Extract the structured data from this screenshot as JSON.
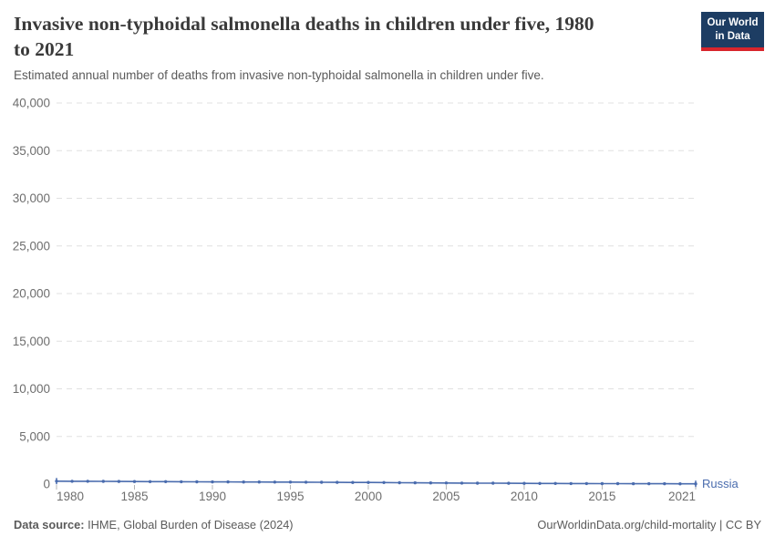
{
  "page": {
    "title_line1": "Invasive non-typhoidal salmonella deaths in children under five, 1980",
    "title_line2": "to 2021",
    "subtitle": "Estimated annual number of deaths from invasive non-typhoidal salmonella in children under five.",
    "logo": {
      "line1": "Our World",
      "line2": "in Data"
    },
    "footer": {
      "source_label": "Data source:",
      "source_text": "IHME, Global Burden of Disease (2024)",
      "license_text": "OurWorldinData.org/child-mortality | CC BY"
    }
  },
  "colors": {
    "series_blue": "#4a6cae",
    "logo_navy": "#1d3d63",
    "logo_red": "#d8252c",
    "gridline": "#e0e0e0",
    "axis_tick_text": "#6e6e6e",
    "tick_mark": "#b5b5b5",
    "title_text": "#3a3a3a",
    "subtitle_text": "#5a5a5a",
    "footer_text": "#5b5b5b"
  },
  "chart_data": {
    "type": "line",
    "title": "Invasive non-typhoidal salmonella deaths in children under five, 1980 to 2021",
    "subtitle": "Estimated annual number of deaths from invasive non-typhoidal salmonella in children under five.",
    "xlabel": "",
    "ylabel": "",
    "ylim": [
      0,
      40000
    ],
    "yticks": [
      0,
      5000,
      10000,
      15000,
      20000,
      25000,
      30000,
      35000,
      40000
    ],
    "xticks": [
      1980,
      1985,
      1990,
      1995,
      2000,
      2005,
      2010,
      2015,
      2021
    ],
    "grid": "horizontal-dashed",
    "legend_position": "end-of-line",
    "years": [
      1980,
      1981,
      1982,
      1983,
      1984,
      1985,
      1986,
      1987,
      1988,
      1989,
      1990,
      1991,
      1992,
      1993,
      1994,
      1995,
      1996,
      1997,
      1998,
      1999,
      2000,
      2001,
      2002,
      2003,
      2004,
      2005,
      2006,
      2007,
      2008,
      2009,
      2010,
      2011,
      2012,
      2013,
      2014,
      2015,
      2016,
      2017,
      2018,
      2019,
      2020,
      2021
    ],
    "series": [
      {
        "name": "Russia",
        "color": "#4a6cae",
        "values": [
          310,
          300,
          295,
          290,
          280,
          270,
          262,
          255,
          248,
          240,
          233,
          228,
          224,
          220,
          215,
          208,
          200,
          192,
          185,
          176,
          168,
          158,
          148,
          138,
          128,
          118,
          108,
          99,
          91,
          84,
          77,
          70,
          64,
          58,
          53,
          48,
          44,
          40,
          37,
          34,
          32,
          30
        ]
      }
    ]
  }
}
